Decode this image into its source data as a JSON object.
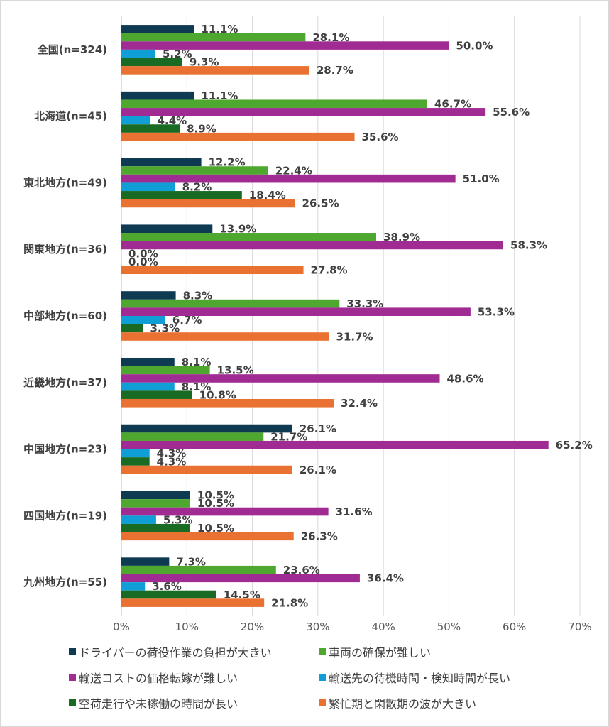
{
  "chart_data": {
    "type": "bar",
    "orientation": "horizontal",
    "categories": [
      "全国(n=324)",
      "北海道(n=45)",
      "東北地方(n=49)",
      "関東地方(n=36)",
      "中部地方(n=60)",
      "近畿地方(n=37)",
      "中国地方(n=23)",
      "四国地方(n=19)",
      "九州地方(n=55)"
    ],
    "series": [
      {
        "name": "ドライバーの荷役作業の負担が大きい",
        "color": "#0e3a52",
        "values": [
          11.1,
          11.1,
          12.2,
          13.9,
          8.3,
          8.1,
          26.1,
          10.5,
          7.3
        ]
      },
      {
        "name": "車両の確保が難しい",
        "color": "#4ea72e",
        "values": [
          28.1,
          46.7,
          22.4,
          38.9,
          33.3,
          13.5,
          21.7,
          10.5,
          23.6
        ]
      },
      {
        "name": "輸送コストの価格転嫁が難しい",
        "color": "#a02b93",
        "values": [
          50.0,
          55.6,
          51.0,
          58.3,
          53.3,
          48.6,
          65.2,
          31.6,
          36.4
        ]
      },
      {
        "name": "輸送先の待機時間・検知時間が長い",
        "color": "#0f9ed5",
        "values": [
          5.2,
          4.4,
          8.2,
          0.0,
          6.7,
          8.1,
          4.3,
          5.3,
          3.6
        ]
      },
      {
        "name": "空荷走行や未稼働の時間が長い",
        "color": "#196b24",
        "values": [
          9.3,
          8.9,
          18.4,
          0.0,
          3.3,
          10.8,
          4.3,
          10.5,
          14.5
        ]
      },
      {
        "name": "繁忙期と閑散期の波が大きい",
        "color": "#e97132",
        "values": [
          28.7,
          35.6,
          26.5,
          27.8,
          31.7,
          32.4,
          26.1,
          26.3,
          21.8
        ]
      }
    ],
    "xlim": [
      0,
      70
    ],
    "xticks": [
      "0%",
      "10%",
      "20%",
      "30%",
      "40%",
      "50%",
      "60%",
      "70%"
    ],
    "grid": true,
    "legend_position": "bottom",
    "title": "",
    "xlabel": "",
    "ylabel": ""
  }
}
